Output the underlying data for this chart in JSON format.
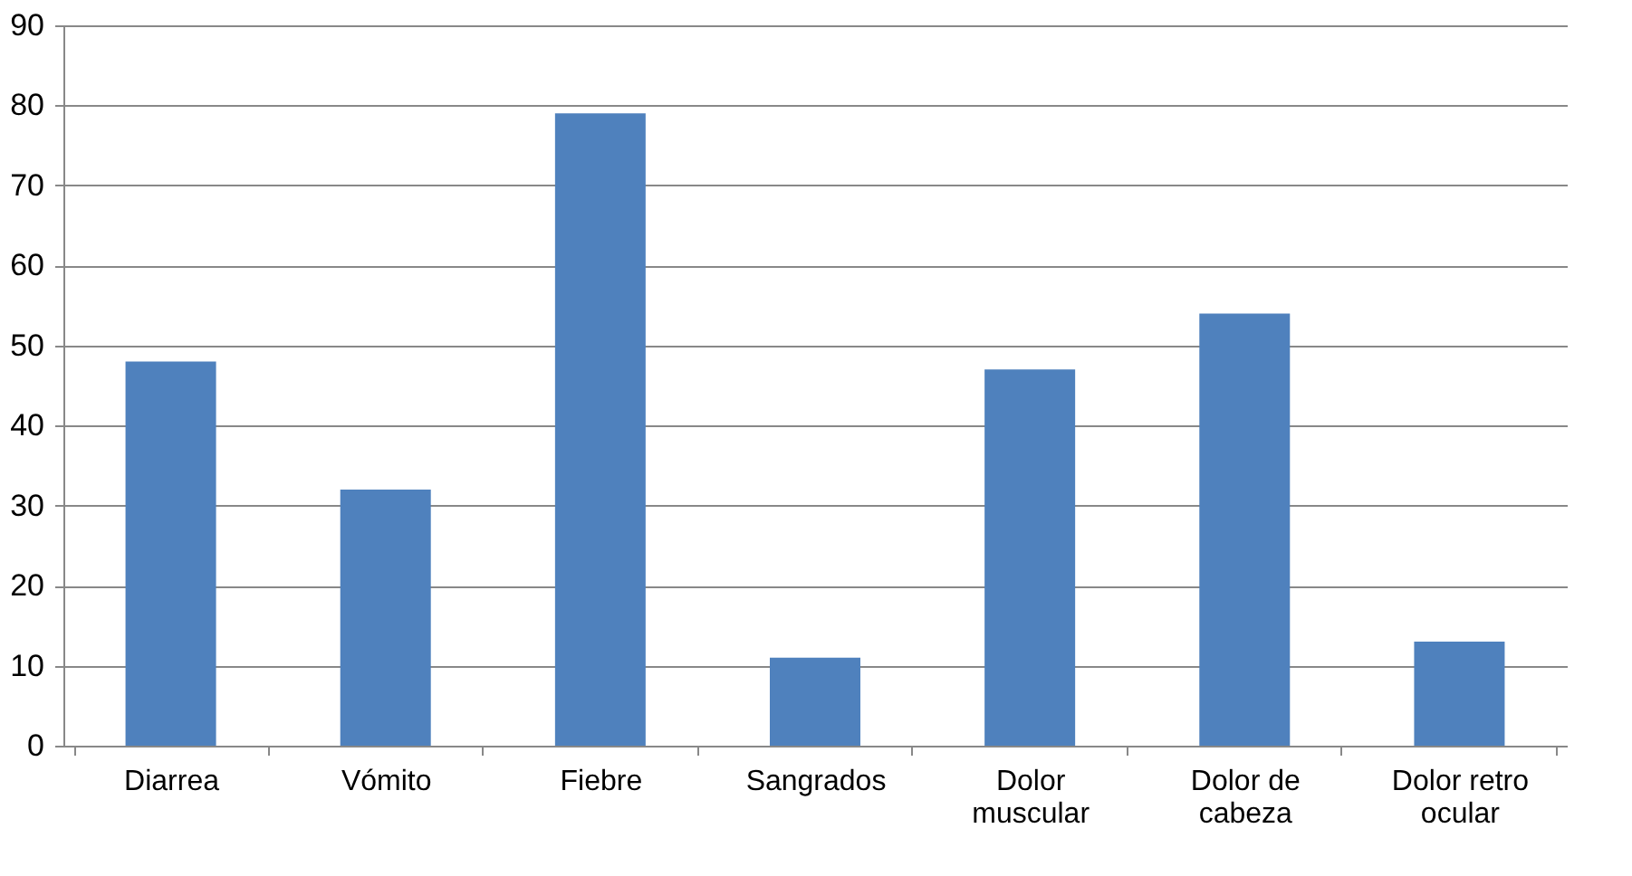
{
  "chart_data": {
    "type": "bar",
    "categories": [
      "Diarrea",
      "Vómito",
      "Fiebre",
      "Sangrados",
      "Dolor muscular",
      "Dolor de cabeza",
      "Dolor retro ocular"
    ],
    "values": [
      48,
      32,
      79,
      11,
      47,
      54,
      13
    ],
    "color": "#4f81bd",
    "ylim": [
      0,
      90
    ],
    "yticks": [
      0,
      10,
      20,
      30,
      40,
      50,
      60,
      70,
      80,
      90
    ],
    "grid": "y"
  }
}
